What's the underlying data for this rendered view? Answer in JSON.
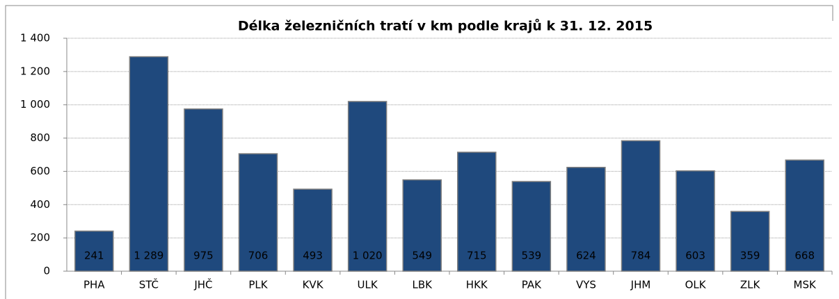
{
  "chart_data": {
    "type": "bar",
    "title": "Délka železničních tratí v km podle krajů k 31. 12. 2015",
    "categories": [
      "PHA",
      "STČ",
      "JHČ",
      "PLK",
      "KVK",
      "ULK",
      "LBK",
      "HKK",
      "PAK",
      "VYS",
      "JHM",
      "OLK",
      "ZLK",
      "MSK"
    ],
    "values": [
      241,
      1289,
      975,
      706,
      493,
      1020,
      549,
      715,
      539,
      624,
      784,
      603,
      359,
      668
    ],
    "value_labels": [
      "241",
      "1 289",
      "975",
      "706",
      "493",
      "1 020",
      "549",
      "715",
      "539",
      "624",
      "784",
      "603",
      "359",
      "668"
    ],
    "color": "#1f497d",
    "ylim": [
      0,
      1400
    ],
    "yticks": [
      0,
      200,
      400,
      600,
      800,
      {
        "value": 1000,
        "label": "1 000"
      },
      {
        "value": 1200,
        "label": "1 200"
      },
      {
        "value": 1400,
        "label": "1 400"
      }
    ],
    "grid": true
  }
}
